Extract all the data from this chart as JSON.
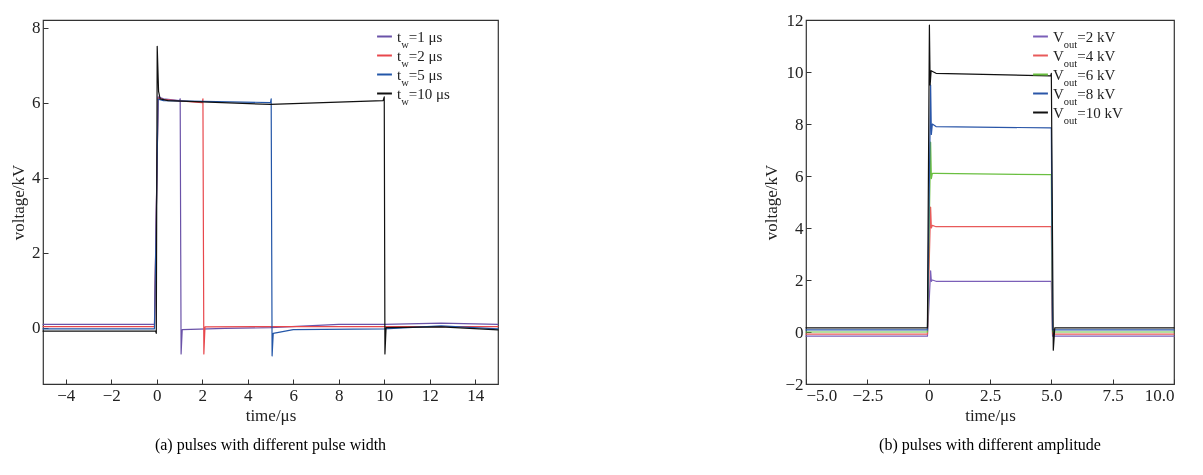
{
  "chart_data": [
    {
      "type": "line",
      "title": "(a) pulses with different pulse width",
      "xlabel": "time/μs",
      "ylabel": "voltage/kV",
      "xlim": [
        -5,
        15
      ],
      "ylim": [
        -1.5,
        8.2
      ],
      "xticks": [
        -4,
        -2,
        0,
        2,
        4,
        6,
        8,
        10,
        12,
        14
      ],
      "yticks": [
        0,
        2,
        4,
        6,
        8
      ],
      "grid": false,
      "legend": "top right",
      "series": [
        {
          "name": "t$_{w}$=1 μs",
          "color": "#6a52a8",
          "x": [
            -5,
            -0.1,
            0.06,
            0.3,
            1.0,
            1.03,
            1.07,
            1.12,
            3,
            5,
            8,
            10,
            12.5,
            15
          ],
          "values": [
            0.09,
            0.09,
            6.15,
            6.1,
            6.05,
            6.1,
            -0.7,
            -0.05,
            -0.02,
            0,
            0.09,
            0.09,
            0.12,
            0.09
          ]
        },
        {
          "name": "t$_{w}$=2 μs",
          "color": "#e8474c",
          "x": [
            -5,
            -0.1,
            0.06,
            0.3,
            2.0,
            2.03,
            2.07,
            2.12,
            5,
            10,
            15
          ],
          "values": [
            0.03,
            0.03,
            6.12,
            6.08,
            6.0,
            6.1,
            -0.7,
            0.02,
            0.03,
            0.03,
            0.03
          ]
        },
        {
          "name": "t$_{w}$=5 μs",
          "color": "#2356a8",
          "x": [
            -5,
            -0.1,
            0.06,
            0.3,
            5.0,
            5.03,
            5.07,
            5.12,
            6,
            10,
            12.5,
            15
          ],
          "values": [
            -0.03,
            -0.03,
            6.09,
            6.05,
            6.0,
            6.1,
            -0.75,
            -0.15,
            -0.05,
            -0.03,
            0.05,
            -0.03
          ]
        },
        {
          "name": "t$_{w}$=10 μs",
          "color": "#111111",
          "x": [
            -5,
            -0.05,
            -0.02,
            0.02,
            0.08,
            0.15,
            0.5,
            5,
            9.95,
            10.0,
            10.03,
            10.08,
            12.5,
            15
          ],
          "values": [
            -0.09,
            -0.09,
            -0.15,
            7.5,
            6.3,
            6.1,
            6.05,
            5.95,
            6.05,
            6.15,
            -0.7,
            0.0,
            0.02,
            -0.06
          ]
        }
      ]
    },
    {
      "type": "line",
      "title": "(b) pulses with different amplitude",
      "xlabel": "time/μs",
      "ylabel": "voltage/kV",
      "xlim": [
        -5,
        10
      ],
      "ylim": [
        -2,
        12
      ],
      "xticks": [
        {
          "value": -5,
          "label": "−5.0"
        },
        {
          "value": -2.5,
          "label": "−2.5"
        },
        {
          "value": 0,
          "label": "0"
        },
        {
          "value": 2.5,
          "label": "2.5"
        },
        {
          "value": 5,
          "label": "5.0"
        },
        {
          "value": 7.5,
          "label": "7.5"
        },
        {
          "value": 10,
          "label": "10.0"
        }
      ],
      "yticks": [
        -2,
        0,
        2,
        4,
        6,
        8,
        10,
        12
      ],
      "grid": false,
      "legend": "top right",
      "series": [
        {
          "name": "V$_{out}$=2 kV",
          "color": "#7b5fb8",
          "x": [
            -5,
            -0.05,
            0.08,
            0.11,
            0.15,
            0.3,
            4.97,
            5.0,
            5.05,
            5.12,
            7.5,
            10
          ],
          "values": [
            -0.16,
            -0.16,
            2.35,
            1.95,
            2.0,
            1.95,
            1.95,
            1.95,
            -0.16,
            -0.16,
            -0.16,
            -0.16
          ]
        },
        {
          "name": "V$_{out}$=4 kV",
          "color": "#e85a5a",
          "x": [
            -5,
            -0.05,
            0.08,
            0.11,
            0.15,
            0.3,
            4.97,
            5.0,
            5.05,
            5.12,
            7.5,
            10
          ],
          "values": [
            -0.08,
            -0.08,
            4.8,
            4.0,
            4.1,
            4.05,
            4.05,
            4.05,
            -0.08,
            -0.08,
            -0.08,
            -0.08
          ]
        },
        {
          "name": "V$_{out}$=6 kV",
          "color": "#6abf40",
          "x": [
            -5,
            -0.05,
            0.08,
            0.11,
            0.15,
            0.3,
            4.97,
            5.0,
            5.05,
            5.12,
            7.5,
            10
          ],
          "values": [
            0,
            0,
            7.3,
            5.9,
            6.1,
            6.1,
            6.05,
            6.05,
            0,
            0,
            0,
            0
          ]
        },
        {
          "name": "V$_{out}$=8 kV",
          "color": "#2a56a8",
          "x": [
            -5,
            -0.05,
            0.08,
            0.11,
            0.15,
            0.3,
            4.97,
            5.0,
            5.05,
            5.12,
            7.5,
            10
          ],
          "values": [
            0.08,
            0.08,
            9.5,
            7.6,
            8.0,
            7.9,
            7.85,
            7.85,
            0.08,
            0.08,
            0.08,
            0.08
          ]
        },
        {
          "name": "V$_{out}$=10 kV",
          "color": "#111111",
          "x": [
            -5,
            -0.05,
            0.03,
            0.06,
            0.1,
            0.3,
            4.97,
            5.0,
            5.08,
            5.14,
            7.5,
            10
          ],
          "values": [
            0.16,
            0.16,
            11.8,
            9.5,
            10.05,
            9.95,
            9.85,
            9.95,
            -0.7,
            0.16,
            0.16,
            0.16
          ]
        }
      ]
    }
  ]
}
